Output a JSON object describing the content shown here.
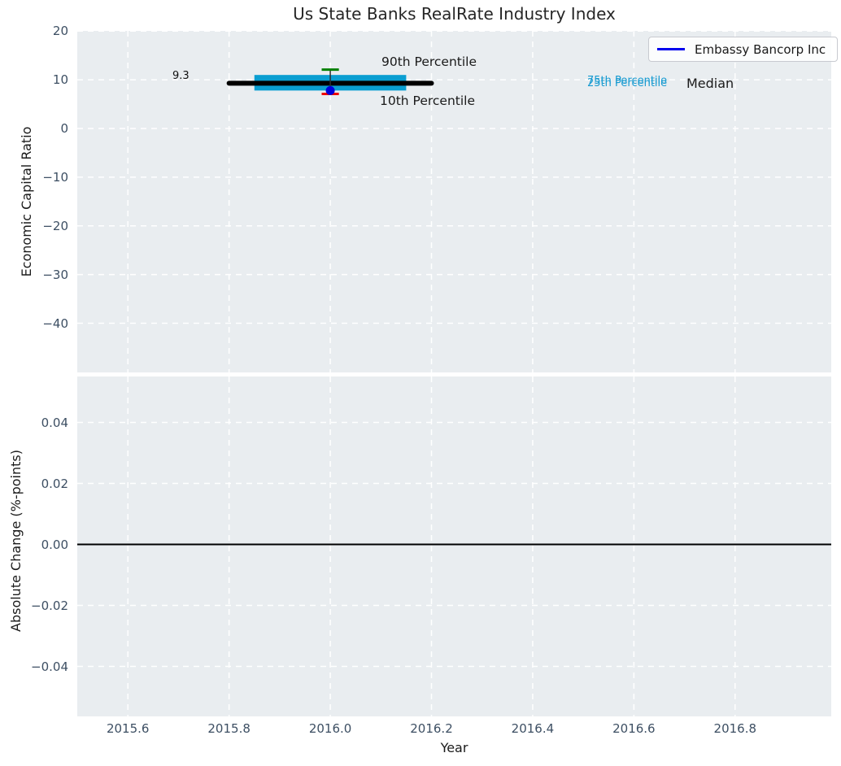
{
  "figure": {
    "title": "Us State Banks RealRate Industry Index"
  },
  "legend": {
    "label": "Embassy Bancorp Inc",
    "line_color": "#0000ee"
  },
  "annotations": {
    "median_value_label": "9.3",
    "p90_label": "90th Percentile",
    "p10_label": "10th Percentile",
    "p75_label": "75th Percentile",
    "p25_label": "25th Percentile",
    "median_label": "Median"
  },
  "colors": {
    "axes_background": "#e9edf0",
    "grid": "#ffffff",
    "tick_label": "#3d4f63",
    "percentile_band": "#0a9ed1",
    "percentile_text": "#189bd1",
    "median_line": "#000000",
    "p90_cap": "#008000",
    "p10_cap": "#ee0000",
    "company_point": "#0000dd"
  },
  "chart_data": [
    {
      "panel": "top",
      "type": "line",
      "title": "Us State Banks RealRate Industry Index",
      "ylabel": "Economic Capital Ratio",
      "xlim": [
        2015.5,
        2016.99
      ],
      "ylim": [
        -50.1,
        20.05
      ],
      "yticks": [
        20,
        10,
        0,
        -10,
        -20,
        -30,
        -40
      ],
      "ytick_labels": [
        "20",
        "10",
        "0",
        "−10",
        "−20",
        "−30",
        "−40"
      ],
      "xticks": [
        2015.6,
        2015.8,
        2016.0,
        2016.2,
        2016.4,
        2016.6,
        2016.8
      ],
      "xtick_labels": [],
      "grid": true,
      "legend_position": "upper right",
      "series": [
        {
          "name": "25th-75th percentile band",
          "mark": "box",
          "x": [
            2015.85,
            2016.15
          ],
          "y": [
            7.8,
            11.0
          ],
          "color": "#0a9ed1"
        },
        {
          "name": "Median",
          "mark": "segment",
          "x": [
            2015.8,
            2016.2
          ],
          "y": 9.3,
          "color": "#000000",
          "linewidth": 6,
          "data_label": "9.3"
        },
        {
          "name": "whisker stem",
          "mark": "vline",
          "x": 2016.0,
          "y": [
            7.8,
            12.1
          ],
          "color": "#2f2f2f",
          "linewidth": 1.5
        },
        {
          "name": "90th percentile cap",
          "mark": "cap",
          "x": [
            2015.983,
            2016.017
          ],
          "y": 12.1,
          "color": "#008000",
          "linewidth": 3
        },
        {
          "name": "10th percentile cap",
          "mark": "cap",
          "x": [
            2015.983,
            2016.017
          ],
          "y": 7.1,
          "color": "#ee0000",
          "linewidth": 3
        },
        {
          "name": "Embassy Bancorp Inc",
          "mark": "point",
          "x": 2016.0,
          "y": 7.8,
          "color": "#0000dd",
          "size": 11
        }
      ]
    },
    {
      "panel": "bottom",
      "type": "line",
      "ylabel": "Absolute Change (%-points)",
      "xlabel": "Year",
      "xlim": [
        2015.5,
        2016.99
      ],
      "ylim": [
        -0.0564,
        0.05507
      ],
      "yticks": [
        0.04,
        0.02,
        0,
        -0.02,
        -0.04
      ],
      "ytick_labels": [
        "0.04",
        "0.02",
        "0.00",
        "−0.02",
        "−0.04"
      ],
      "xticks": [
        2015.6,
        2015.8,
        2016.0,
        2016.2,
        2016.4,
        2016.6,
        2016.8
      ],
      "xtick_labels": [
        "2015.6",
        "2015.8",
        "2016.0",
        "2016.2",
        "2016.4",
        "2016.6",
        "2016.8"
      ],
      "grid": true,
      "series": [
        {
          "name": "zero line",
          "mark": "hline",
          "y": 0,
          "color": "#000000",
          "linewidth": 2
        }
      ]
    }
  ]
}
